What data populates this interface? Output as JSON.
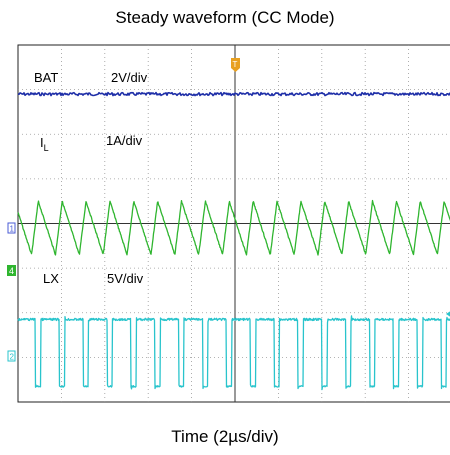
{
  "chart_data": {
    "type": "line",
    "title": "Steady waveform (CC Mode)",
    "xlabel": "Time (2µs/div)",
    "ylabel": "",
    "x_divisions": 10,
    "y_divisions": 8,
    "grid": true,
    "x_unit": "µs",
    "x_per_div": 2,
    "series": [
      {
        "name": "BAT",
        "scale": "2V/div",
        "color": "#1f2fa8",
        "shape": "dc-with-noise",
        "level_div": 6.9
      },
      {
        "name": "IL",
        "scale": "1A/div",
        "color": "#2fb52f",
        "shape": "sawtooth-triangle",
        "period_us": 1.1,
        "high_div": 4.5,
        "low_div": 3.3
      },
      {
        "name": "LX",
        "scale": "5V/div",
        "color": "#29c4cc",
        "shape": "square",
        "period_us": 1.1,
        "duty": 0.78,
        "high_div": 1.85,
        "low_div": 0.35
      }
    ],
    "channel_markers": [
      {
        "label": "1",
        "color": "#4a5bd6"
      },
      {
        "label": "4",
        "color": "#2fb52f"
      },
      {
        "label": "2",
        "color": "#29c4cc"
      }
    ],
    "trigger_marker": {
      "label": "T",
      "color": "#e8a020"
    }
  },
  "labels": {
    "bat": "BAT",
    "bat_scale": "2V/div",
    "il_main": "I",
    "il_sub": "L",
    "il_scale": "1A/div",
    "lx": "LX",
    "lx_scale": "5V/div",
    "ch1": "1",
    "ch4": "4",
    "ch2": "2",
    "trig": "T"
  }
}
